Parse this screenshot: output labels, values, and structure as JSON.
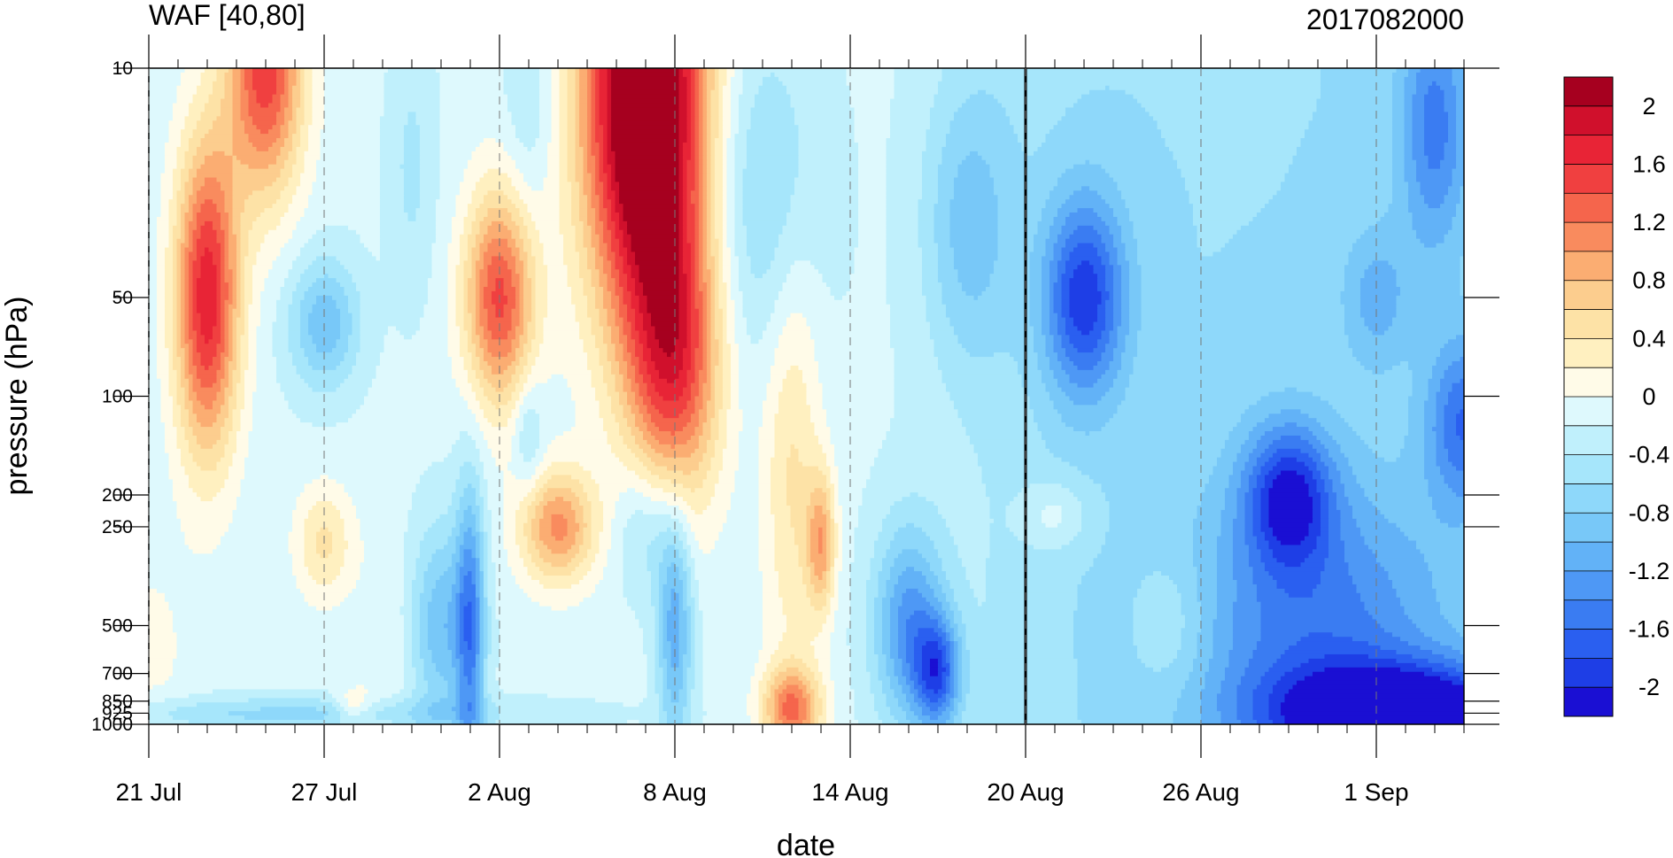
{
  "chart_data": {
    "type": "heatmap",
    "title_left": "WAF [40,80]",
    "title_right": "2017082000",
    "xlabel": "date",
    "ylabel": "pressure (hPa)",
    "x_range": [
      "2017-07-21",
      "2017-09-04"
    ],
    "x_ticks": [
      {
        "date": "2017-07-21",
        "label": "21 Jul"
      },
      {
        "date": "2017-07-27",
        "label": "27 Jul"
      },
      {
        "date": "2017-08-02",
        "label": "2 Aug"
      },
      {
        "date": "2017-08-08",
        "label": "8 Aug"
      },
      {
        "date": "2017-08-14",
        "label": "14 Aug"
      },
      {
        "date": "2017-08-20",
        "label": "20 Aug"
      },
      {
        "date": "2017-08-26",
        "label": "26 Aug"
      },
      {
        "date": "2017-09-01",
        "label": "1 Sep"
      }
    ],
    "y_scale": "log",
    "y_inverted": true,
    "y_range": [
      1000,
      10
    ],
    "y_ticks": [
      {
        "value": 10,
        "label": "10"
      },
      {
        "value": 50,
        "label": "50"
      },
      {
        "value": 100,
        "label": "100"
      },
      {
        "value": 200,
        "label": "200"
      },
      {
        "value": 250,
        "label": "250"
      },
      {
        "value": 500,
        "label": "500"
      },
      {
        "value": 700,
        "label": "700"
      },
      {
        "value": 850,
        "label": "850"
      },
      {
        "value": 925,
        "label": "925"
      },
      {
        "value": 1000,
        "label": "1000"
      }
    ],
    "analysis_date": "2017-08-20",
    "colorbar": {
      "levels": [
        -2.2,
        -2,
        -1.8,
        -1.6,
        -1.4,
        -1.2,
        -1,
        -0.8,
        -0.6,
        -0.4,
        -0.2,
        0,
        0.2,
        0.4,
        0.6,
        0.8,
        1,
        1.2,
        1.4,
        1.6,
        1.8,
        2,
        2.2
      ],
      "colors": [
        "#1a0fd3",
        "#1e3ee6",
        "#2a5ff0",
        "#3a7cf2",
        "#4e98f5",
        "#62b2f7",
        "#78c8f8",
        "#8ed8fa",
        "#a6e6fb",
        "#c0f0fc",
        "#def9fd",
        "#fffbe8",
        "#fff0c0",
        "#fde2a6",
        "#fccd8e",
        "#fbad72",
        "#f98b5e",
        "#f5654c",
        "#f04040",
        "#e82436",
        "#d0102c",
        "#a6001f"
      ],
      "labels": [
        {
          "value": 2,
          "label": "2"
        },
        {
          "value": 1.6,
          "label": "1.6"
        },
        {
          "value": 1.2,
          "label": "1.2"
        },
        {
          "value": 0.8,
          "label": "0.8"
        },
        {
          "value": 0.4,
          "label": "0.4"
        },
        {
          "value": 0,
          "label": "0"
        },
        {
          "value": -0.4,
          "label": "-0.4"
        },
        {
          "value": -0.8,
          "label": "-0.8"
        },
        {
          "value": -1.2,
          "label": "-1.2"
        },
        {
          "value": -1.6,
          "label": "-1.6"
        },
        {
          "value": -2,
          "label": "-2"
        }
      ]
    },
    "features": [
      {
        "date": "2017-07-23",
        "p": 50,
        "dt": 1.1,
        "dlnp": 1.1,
        "v": 1.9
      },
      {
        "date": "2017-07-25",
        "p": 10,
        "dt": 1.3,
        "dlnp": 0.9,
        "v": 1.7
      },
      {
        "date": "2017-07-27",
        "p": 60,
        "dt": 1.2,
        "dlnp": 0.45,
        "v": -0.8
      },
      {
        "date": "2017-07-27",
        "p": 280,
        "dt": 1.0,
        "dlnp": 0.4,
        "v": 0.6
      },
      {
        "date": "2017-07-21",
        "p": 600,
        "dt": 1.6,
        "dlnp": 0.8,
        "v": 0.2
      },
      {
        "date": "2017-07-29",
        "p": 600,
        "dt": 0.9,
        "dlnp": 0.9,
        "v": 0.15
      },
      {
        "date": "2017-07-28",
        "p": 880,
        "dt": 0.6,
        "dlnp": 0.12,
        "v": 0.5
      },
      {
        "date": "2017-07-30",
        "p": 20,
        "dt": 0.8,
        "dlnp": 0.9,
        "v": -0.3
      },
      {
        "date": "2017-07-31",
        "p": 500,
        "dt": 1.0,
        "dlnp": 0.7,
        "v": -0.8
      },
      {
        "date": "2017-08-01",
        "p": 500,
        "dt": 0.5,
        "dlnp": 1.0,
        "v": -1.2
      },
      {
        "date": "2017-08-02",
        "p": 50,
        "dt": 1.2,
        "dlnp": 0.75,
        "v": 1.6
      },
      {
        "date": "2017-08-03",
        "p": 12,
        "dt": 0.8,
        "dlnp": 0.9,
        "v": -0.3
      },
      {
        "date": "2017-08-03",
        "p": 130,
        "dt": 0.5,
        "dlnp": 0.4,
        "v": -0.4
      },
      {
        "date": "2017-08-04",
        "p": 250,
        "dt": 1.3,
        "dlnp": 0.4,
        "v": 1.2
      },
      {
        "date": "2017-08-07",
        "p": 12,
        "dt": 2.1,
        "dlnp": 1.6,
        "v": 3.0
      },
      {
        "date": "2017-08-08",
        "p": 80,
        "dt": 1.6,
        "dlnp": 1.0,
        "v": 1.5
      },
      {
        "date": "2017-08-07",
        "p": 250,
        "dt": 1.0,
        "dlnp": 0.5,
        "v": -0.5
      },
      {
        "date": "2017-08-08",
        "p": 500,
        "dt": 0.6,
        "dlnp": 0.8,
        "v": -1.0
      },
      {
        "date": "2017-08-12",
        "p": 150,
        "dt": 1.0,
        "dlnp": 1.6,
        "v": 0.6
      },
      {
        "date": "2017-08-12",
        "p": 900,
        "dt": 1.0,
        "dlnp": 0.3,
        "v": 1.3
      },
      {
        "date": "2017-08-13",
        "p": 280,
        "dt": 0.5,
        "dlnp": 0.5,
        "v": 1.0
      },
      {
        "date": "2017-08-11",
        "p": 25,
        "dt": 2.0,
        "dlnp": 1.2,
        "v": -0.55
      },
      {
        "date": "2017-08-16",
        "p": 500,
        "dt": 1.2,
        "dlnp": 0.7,
        "v": -1.1
      },
      {
        "date": "2017-08-17",
        "p": 700,
        "dt": 0.8,
        "dlnp": 0.4,
        "v": -1.3
      },
      {
        "date": "2017-08-18",
        "p": 30,
        "dt": 1.5,
        "dlnp": 1.0,
        "v": -0.6
      },
      {
        "date": "2017-08-22",
        "p": 50,
        "dt": 1.4,
        "dlnp": 0.7,
        "v": -1.4
      },
      {
        "date": "2017-08-21",
        "p": 230,
        "dt": 1.2,
        "dlnp": 0.25,
        "v": 0.4
      },
      {
        "date": "2017-08-25",
        "p": 500,
        "dt": 1.3,
        "dlnp": 0.5,
        "v": 0.35
      },
      {
        "date": "2017-08-25",
        "p": 50,
        "dt": 0.4,
        "dlnp": 0.4,
        "v": -0.1
      },
      {
        "date": "2017-08-29",
        "p": 200,
        "dt": 1.5,
        "dlnp": 0.5,
        "v": -1.3
      },
      {
        "date": "2017-09-02",
        "p": 940,
        "dt": 4.5,
        "dlnp": 0.35,
        "v": -2.0
      },
      {
        "date": "2017-08-30",
        "p": 500,
        "dt": 4.5,
        "dlnp": 1.0,
        "v": -0.9
      },
      {
        "date": "2017-09-01",
        "p": 50,
        "dt": 1.2,
        "dlnp": 0.5,
        "v": -0.5
      },
      {
        "date": "2017-09-04",
        "p": 120,
        "dt": 1.3,
        "dlnp": 0.6,
        "v": -1.0
      },
      {
        "date": "2017-09-03",
        "p": 15,
        "dt": 1.2,
        "dlnp": 0.9,
        "v": -0.9
      },
      {
        "date": "2017-07-26",
        "p": 930,
        "dt": 8,
        "dlnp": 0.12,
        "v": -0.5
      }
    ],
    "background": {
      "eastward_date": "2017-08-20",
      "west_value": -0.15,
      "east_value": -0.6
    },
    "grid": false
  }
}
